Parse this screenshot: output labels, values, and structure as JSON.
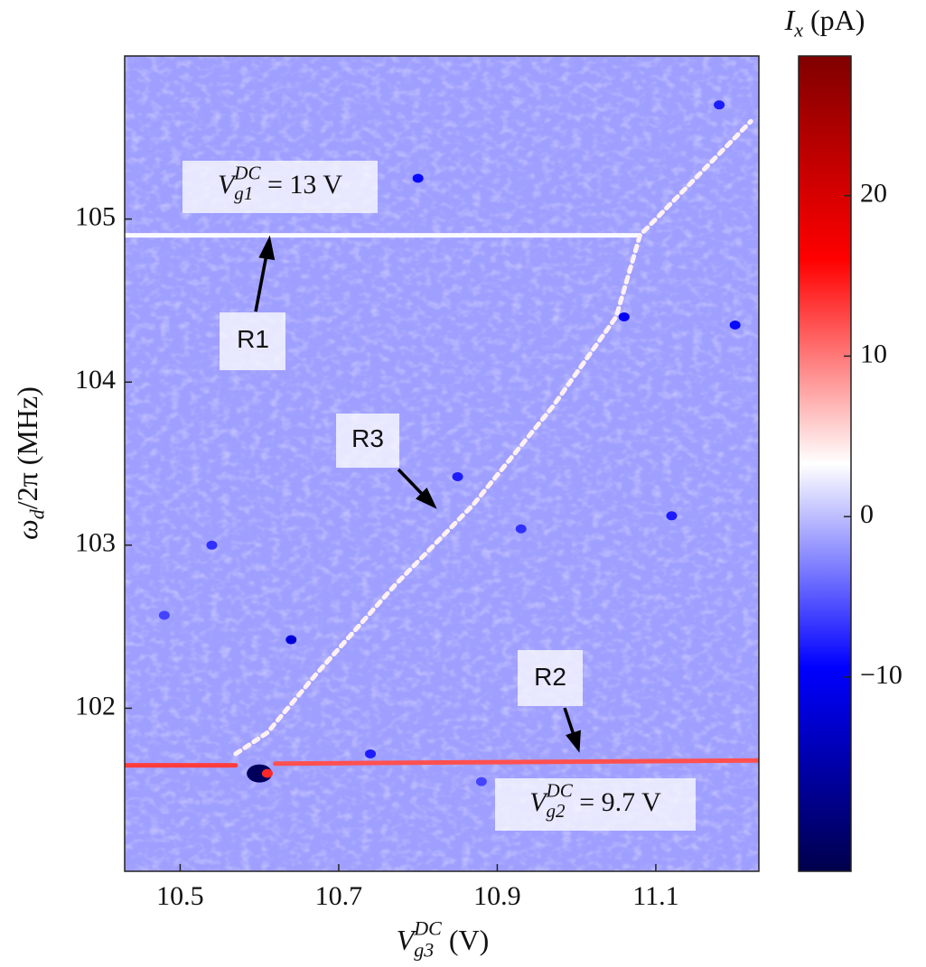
{
  "chart_data": {
    "type": "heatmap",
    "xlabel": {
      "base": "V",
      "sub": "g3",
      "sup": "DC",
      "rest": " (V)"
    },
    "ylabel": {
      "base": "ω",
      "sub": "d",
      "rest": "/2π (MHz)"
    },
    "colorbar_label": {
      "base": "I",
      "sub": "x",
      "rest": " (pA)"
    },
    "xlim": [
      10.43,
      11.23
    ],
    "ylim": [
      101.0,
      106.0
    ],
    "xticks": [
      10.5,
      10.7,
      10.9,
      11.1
    ],
    "yticks": [
      102,
      103,
      104,
      105
    ],
    "clim": [
      -22.1,
      28.7
    ],
    "cticks": [
      {
        "value": -10,
        "label": "−10"
      },
      0,
      10,
      20
    ],
    "colormap": [
      "#00004c",
      "#0000ff",
      "#ffffff",
      "#ff0000",
      "#800000"
    ],
    "background_value": -1.5,
    "traces": [
      {
        "x": [
          10.43,
          11.08
        ],
        "y": [
          104.9,
          104.9
        ],
        "value": 3
      },
      {
        "x": [
          10.57,
          10.61,
          10.67,
          10.77,
          10.87,
          10.97,
          11.05,
          11.08,
          11.15,
          11.22
        ],
        "y": [
          101.72,
          101.85,
          102.2,
          102.75,
          103.25,
          103.85,
          104.4,
          104.9,
          105.25,
          105.6
        ],
        "value": 4
      },
      {
        "x": [
          10.43,
          10.57
        ],
        "y": [
          101.65,
          101.65
        ],
        "value": 13
      },
      {
        "x": [
          10.62,
          11.23
        ],
        "y": [
          101.66,
          101.68
        ],
        "value": 12
      }
    ],
    "spots": {
      "x": [
        10.6,
        10.64,
        10.74,
        10.8,
        10.85,
        10.93,
        11.06,
        11.12,
        11.2,
        11.18,
        10.54,
        10.48,
        10.61,
        10.88
      ],
      "y": [
        101.6,
        102.42,
        101.72,
        105.25,
        103.42,
        103.1,
        104.4,
        103.18,
        104.35,
        105.7,
        103.0,
        102.57,
        101.6,
        101.55
      ],
      "values": [
        -21,
        -12,
        -8,
        -9,
        -8,
        -7,
        -10,
        -8,
        -9,
        -8,
        -7,
        -6,
        14,
        -6
      ]
    },
    "annotations": [
      {
        "base": "V",
        "sub": "g1",
        "sup": "DC",
        "rest": " = 13 V"
      },
      {
        "text": "R1"
      },
      {
        "text": "R3"
      },
      {
        "text": "R2"
      },
      {
        "base": "V",
        "sub": "g2",
        "sup": "DC",
        "rest": " = 9.7 V"
      }
    ]
  }
}
